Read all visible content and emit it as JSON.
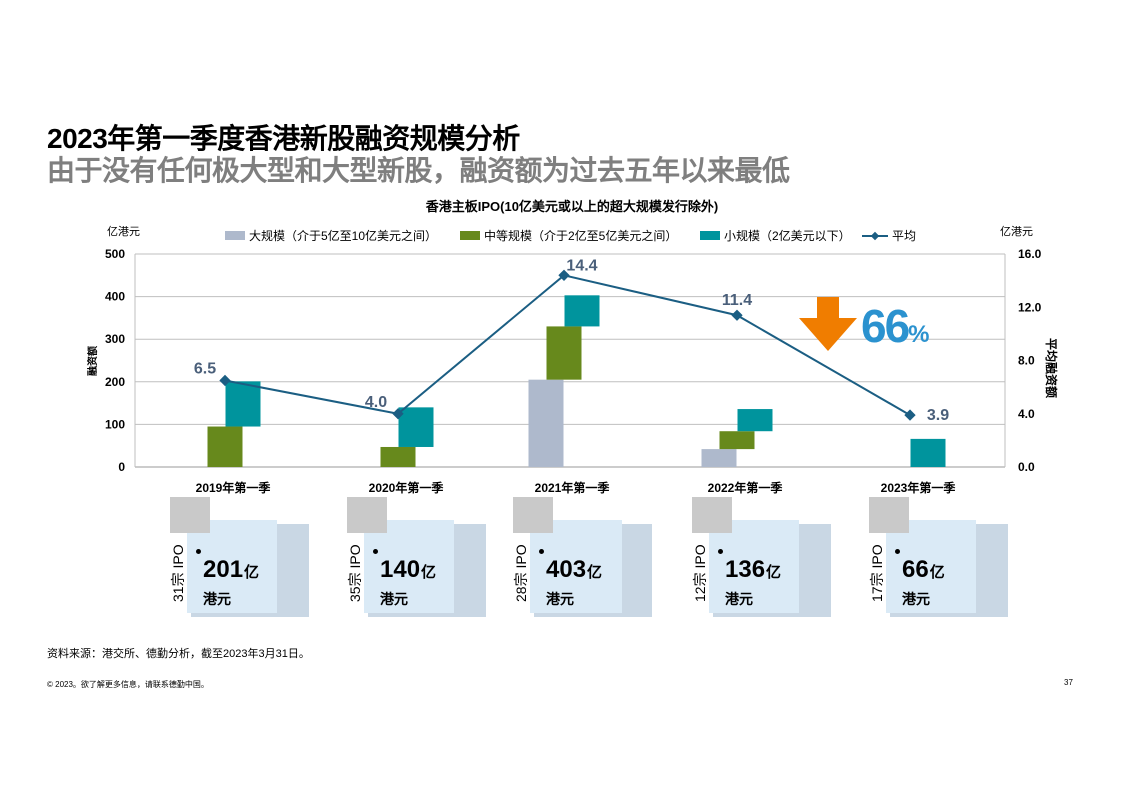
{
  "header": {
    "title": "2023年第一季度香港新股融资规模分析",
    "subtitle": "由于没有任何极大型和大型新股，融资额为过去五年以来最低"
  },
  "chart_data": {
    "type": "bar",
    "stacked": true,
    "title": "香港主板IPO(10亿美元或以上的超大规模发行除外)",
    "categories": [
      "2019年第一季",
      "2020年第一季",
      "2021年第一季",
      "2022年第一季",
      "2023年第一季"
    ],
    "series": [
      {
        "name": "大规模（介于5亿至10亿美元之间）",
        "color": "#aeb9cc",
        "values": [
          0,
          0,
          205,
          42,
          0
        ]
      },
      {
        "name": "中等规模（介于2亿至5亿美元之间）",
        "color": "#67891c",
        "values": [
          95,
          47,
          125,
          42,
          0
        ]
      },
      {
        "name": "小规模（2亿美元以下）",
        "color": "#00949d",
        "values": [
          106,
          93,
          73,
          52,
          66
        ]
      }
    ],
    "line_series": {
      "name": "平均",
      "color": "#1b5e83",
      "values": [
        6.5,
        4.0,
        14.4,
        11.4,
        3.9
      ],
      "labels": [
        "6.5",
        "4.0",
        "14.4",
        "11.4",
        "3.9"
      ]
    },
    "ylabel": "融资额",
    "ylabel_unit": "亿港元",
    "y2label": "平均融资额",
    "y2label_unit": "亿港元",
    "ylim": [
      0,
      500
    ],
    "y2lim": [
      0,
      16
    ],
    "yticks": [
      "0",
      "100",
      "200",
      "300",
      "400",
      "500"
    ],
    "y2ticks": [
      "0.0",
      "4.0",
      "8.0",
      "12.0",
      "16.0"
    ],
    "grid": true,
    "legend_position": "top",
    "annotation": {
      "text": "66",
      "suffix": "%",
      "arrow": "down",
      "arrow_color": "#f07d00",
      "text_color": "#2b92cf"
    }
  },
  "summary": [
    {
      "count": "31宗 IPO",
      "amount": "201",
      "unit": "亿",
      "currency": "港元"
    },
    {
      "count": "35宗 IPO",
      "amount": "140",
      "unit": "亿",
      "currency": "港元"
    },
    {
      "count": "28宗 IPO",
      "amount": "403",
      "unit": "亿",
      "currency": "港元"
    },
    {
      "count": "12宗 IPO",
      "amount": "136",
      "unit": "亿",
      "currency": "港元"
    },
    {
      "count": "17宗 IPO",
      "amount": "66",
      "unit": "亿",
      "currency": "港元"
    }
  ],
  "footer": {
    "source": "资料来源：港交所、德勤分析，截至2023年3月31日。",
    "copyright": "© 2023。欲了解更多信息，请联系德勤中国。",
    "page_number": "37"
  }
}
